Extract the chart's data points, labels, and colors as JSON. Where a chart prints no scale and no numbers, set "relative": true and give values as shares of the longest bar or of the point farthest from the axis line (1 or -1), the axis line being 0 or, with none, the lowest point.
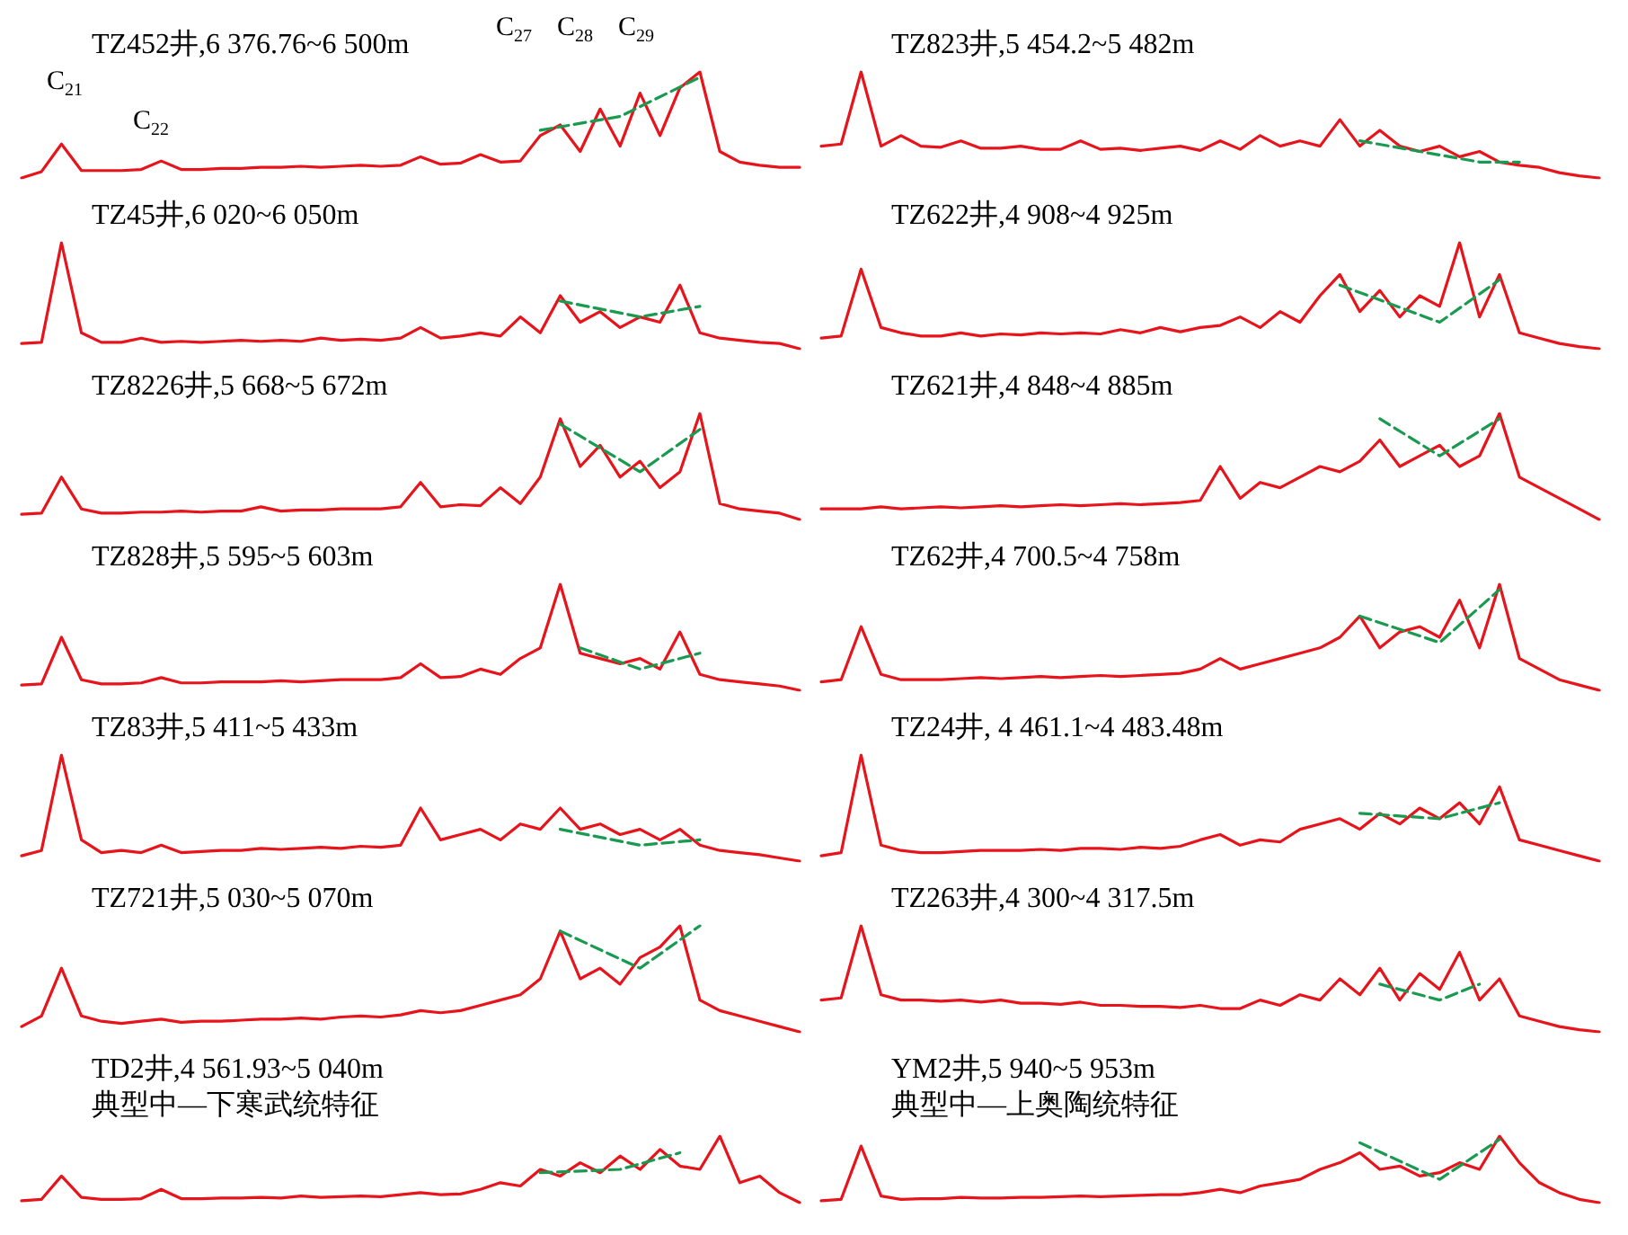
{
  "chart_data": [
    {
      "type": "line",
      "title": "TZ452井,6 376.76~6 500m",
      "relative": true,
      "annotations": [
        "C$_{21}$",
        "C$_{22}$",
        "C$_{27}$",
        "C$_{28}$",
        "C$_{29}$"
      ],
      "categories": [
        null,
        null,
        null,
        null,
        null,
        null,
        null,
        null,
        null,
        null,
        null,
        null,
        null,
        null,
        null,
        null,
        null,
        null,
        null,
        null,
        null,
        null,
        null,
        null,
        null,
        null,
        null,
        null,
        null,
        null,
        null,
        null,
        null,
        null,
        null,
        null,
        null,
        null,
        null,
        null
      ],
      "series": [
        {
          "color": "#e8141c",
          "values": [
            0.0,
            0.06,
            0.32,
            0.07,
            0.07,
            0.07,
            0.08,
            0.16,
            0.08,
            0.08,
            0.09,
            0.09,
            0.1,
            0.1,
            0.11,
            0.1,
            0.11,
            0.12,
            0.11,
            0.12,
            0.2,
            0.13,
            0.14,
            0.22,
            0.15,
            0.16,
            0.4,
            0.5,
            0.25,
            0.65,
            0.3,
            0.8,
            0.4,
            0.85,
            1.0,
            0.25,
            0.15,
            0.12,
            0.1,
            0.1
          ]
        },
        {
          "color": "#1a9a50",
          "line_style": "dashed",
          "values": [
            null,
            null,
            null,
            null,
            null,
            null,
            null,
            null,
            null,
            null,
            null,
            null,
            null,
            null,
            null,
            null,
            null,
            null,
            null,
            null,
            null,
            null,
            null,
            null,
            null,
            null,
            0.45,
            null,
            null,
            null,
            0.58,
            null,
            null,
            null,
            0.95,
            null,
            null,
            null,
            null,
            null
          ]
        }
      ]
    },
    {
      "type": "line",
      "title": "TZ823井,5 454.2~5 482m",
      "relative": true,
      "categories": [
        null,
        null,
        null,
        null,
        null,
        null,
        null,
        null,
        null,
        null,
        null,
        null,
        null,
        null,
        null,
        null,
        null,
        null,
        null,
        null,
        null,
        null,
        null,
        null,
        null,
        null,
        null,
        null,
        null,
        null,
        null,
        null,
        null,
        null,
        null,
        null,
        null,
        null,
        null,
        null
      ],
      "series": [
        {
          "color": "#e8141c",
          "values": [
            0.3,
            0.32,
            1.0,
            0.3,
            0.4,
            0.3,
            0.29,
            0.35,
            0.28,
            0.28,
            0.3,
            0.27,
            0.27,
            0.35,
            0.27,
            0.28,
            0.26,
            0.28,
            0.3,
            0.26,
            0.35,
            0.27,
            0.4,
            0.3,
            0.35,
            0.3,
            0.55,
            0.3,
            0.45,
            0.3,
            0.25,
            0.3,
            0.2,
            0.25,
            0.15,
            0.12,
            0.1,
            0.05,
            0.02,
            0.0
          ]
        },
        {
          "color": "#1a9a50",
          "line_style": "dashed",
          "values": [
            null,
            null,
            null,
            null,
            null,
            null,
            null,
            null,
            null,
            null,
            null,
            null,
            null,
            null,
            null,
            null,
            null,
            null,
            null,
            null,
            null,
            null,
            null,
            null,
            null,
            null,
            null,
            0.35,
            null,
            null,
            null,
            null,
            null,
            0.15,
            null,
            0.15,
            null,
            null,
            null,
            null
          ]
        }
      ]
    },
    {
      "type": "line",
      "title": "TZ45井,6 020~6 050m",
      "relative": true,
      "categories": [
        null,
        null,
        null,
        null,
        null,
        null,
        null,
        null,
        null,
        null,
        null,
        null,
        null,
        null,
        null,
        null,
        null,
        null,
        null,
        null,
        null,
        null,
        null,
        null,
        null,
        null,
        null,
        null,
        null,
        null,
        null,
        null,
        null,
        null,
        null,
        null,
        null,
        null,
        null,
        null
      ],
      "series": [
        {
          "color": "#e8141c",
          "values": [
            0.05,
            0.06,
            1.0,
            0.15,
            0.06,
            0.06,
            0.1,
            0.06,
            0.07,
            0.06,
            0.07,
            0.08,
            0.07,
            0.08,
            0.07,
            0.1,
            0.08,
            0.09,
            0.08,
            0.1,
            0.2,
            0.1,
            0.12,
            0.15,
            0.12,
            0.3,
            0.15,
            0.5,
            0.25,
            0.35,
            0.2,
            0.3,
            0.25,
            0.6,
            0.15,
            0.1,
            0.08,
            0.06,
            0.05,
            0.0
          ]
        },
        {
          "color": "#1a9a50",
          "line_style": "dashed",
          "values": [
            null,
            null,
            null,
            null,
            null,
            null,
            null,
            null,
            null,
            null,
            null,
            null,
            null,
            null,
            null,
            null,
            null,
            null,
            null,
            null,
            null,
            null,
            null,
            null,
            null,
            null,
            null,
            0.45,
            null,
            null,
            null,
            0.3,
            null,
            null,
            0.4,
            null,
            null,
            null,
            null,
            null
          ]
        }
      ]
    },
    {
      "type": "line",
      "title": "TZ622井,4 908~4 925m",
      "relative": true,
      "categories": [
        null,
        null,
        null,
        null,
        null,
        null,
        null,
        null,
        null,
        null,
        null,
        null,
        null,
        null,
        null,
        null,
        null,
        null,
        null,
        null,
        null,
        null,
        null,
        null,
        null,
        null,
        null,
        null,
        null,
        null,
        null,
        null,
        null,
        null,
        null,
        null,
        null,
        null,
        null,
        null
      ],
      "series": [
        {
          "color": "#e8141c",
          "values": [
            0.1,
            0.12,
            0.75,
            0.2,
            0.15,
            0.12,
            0.12,
            0.15,
            0.12,
            0.14,
            0.13,
            0.15,
            0.14,
            0.15,
            0.14,
            0.18,
            0.15,
            0.2,
            0.16,
            0.2,
            0.22,
            0.3,
            0.2,
            0.35,
            0.25,
            0.5,
            0.7,
            0.35,
            0.55,
            0.3,
            0.5,
            0.4,
            1.0,
            0.3,
            0.7,
            0.15,
            0.1,
            0.05,
            0.02,
            0.0
          ]
        },
        {
          "color": "#1a9a50",
          "line_style": "dashed",
          "values": [
            null,
            null,
            null,
            null,
            null,
            null,
            null,
            null,
            null,
            null,
            null,
            null,
            null,
            null,
            null,
            null,
            null,
            null,
            null,
            null,
            null,
            null,
            null,
            null,
            null,
            null,
            0.6,
            null,
            null,
            null,
            null,
            0.25,
            null,
            null,
            0.65,
            null,
            null,
            null,
            null,
            null
          ]
        }
      ]
    },
    {
      "type": "line",
      "title": "TZ8226井,5 668~5 672m",
      "relative": true,
      "categories": [
        null,
        null,
        null,
        null,
        null,
        null,
        null,
        null,
        null,
        null,
        null,
        null,
        null,
        null,
        null,
        null,
        null,
        null,
        null,
        null,
        null,
        null,
        null,
        null,
        null,
        null,
        null,
        null,
        null,
        null,
        null,
        null,
        null,
        null,
        null,
        null,
        null,
        null,
        null,
        null
      ],
      "series": [
        {
          "color": "#e8141c",
          "values": [
            0.05,
            0.06,
            0.4,
            0.1,
            0.06,
            0.06,
            0.07,
            0.07,
            0.08,
            0.07,
            0.08,
            0.08,
            0.12,
            0.08,
            0.09,
            0.09,
            0.1,
            0.1,
            0.1,
            0.12,
            0.35,
            0.12,
            0.14,
            0.13,
            0.3,
            0.15,
            0.4,
            0.95,
            0.5,
            0.7,
            0.4,
            0.55,
            0.3,
            0.45,
            1.0,
            0.15,
            0.1,
            0.08,
            0.06,
            0.0
          ]
        },
        {
          "color": "#1a9a50",
          "line_style": "dashed",
          "values": [
            null,
            null,
            null,
            null,
            null,
            null,
            null,
            null,
            null,
            null,
            null,
            null,
            null,
            null,
            null,
            null,
            null,
            null,
            null,
            null,
            null,
            null,
            null,
            null,
            null,
            null,
            null,
            0.9,
            null,
            null,
            null,
            0.45,
            null,
            null,
            0.85,
            null,
            null,
            null,
            null,
            null
          ]
        }
      ]
    },
    {
      "type": "line",
      "title": "TZ621井,4 848~4 885m",
      "relative": true,
      "categories": [
        null,
        null,
        null,
        null,
        null,
        null,
        null,
        null,
        null,
        null,
        null,
        null,
        null,
        null,
        null,
        null,
        null,
        null,
        null,
        null,
        null,
        null,
        null,
        null,
        null,
        null,
        null,
        null,
        null,
        null,
        null,
        null,
        null,
        null,
        null,
        null,
        null,
        null,
        null,
        null
      ],
      "series": [
        {
          "color": "#e8141c",
          "values": [
            0.1,
            0.1,
            0.1,
            0.12,
            0.1,
            0.11,
            0.12,
            0.11,
            0.12,
            0.13,
            0.12,
            0.13,
            0.14,
            0.13,
            0.14,
            0.15,
            0.14,
            0.15,
            0.16,
            0.18,
            0.5,
            0.2,
            0.35,
            0.3,
            0.4,
            0.5,
            0.45,
            0.55,
            0.75,
            0.5,
            0.6,
            0.7,
            0.5,
            0.6,
            1.0,
            0.4,
            0.3,
            0.2,
            0.1,
            0.0
          ]
        },
        {
          "color": "#1a9a50",
          "line_style": "dashed",
          "values": [
            null,
            null,
            null,
            null,
            null,
            null,
            null,
            null,
            null,
            null,
            null,
            null,
            null,
            null,
            null,
            null,
            null,
            null,
            null,
            null,
            null,
            null,
            null,
            null,
            null,
            null,
            null,
            null,
            0.95,
            null,
            null,
            0.6,
            null,
            null,
            0.95,
            null,
            null,
            null,
            null,
            null
          ]
        }
      ]
    },
    {
      "type": "line",
      "title": "TZ828井,5 595~5 603m",
      "relative": true,
      "categories": [
        null,
        null,
        null,
        null,
        null,
        null,
        null,
        null,
        null,
        null,
        null,
        null,
        null,
        null,
        null,
        null,
        null,
        null,
        null,
        null,
        null,
        null,
        null,
        null,
        null,
        null,
        null,
        null,
        null,
        null,
        null,
        null,
        null,
        null,
        null,
        null,
        null,
        null,
        null,
        null
      ],
      "series": [
        {
          "color": "#e8141c",
          "values": [
            0.05,
            0.06,
            0.5,
            0.1,
            0.06,
            0.06,
            0.07,
            0.12,
            0.07,
            0.07,
            0.08,
            0.08,
            0.08,
            0.09,
            0.08,
            0.09,
            0.1,
            0.1,
            0.1,
            0.12,
            0.25,
            0.12,
            0.13,
            0.2,
            0.15,
            0.3,
            0.4,
            1.0,
            0.35,
            0.3,
            0.25,
            0.3,
            0.2,
            0.55,
            0.15,
            0.1,
            0.08,
            0.06,
            0.04,
            0.0
          ]
        },
        {
          "color": "#1a9a50",
          "line_style": "dashed",
          "values": [
            null,
            null,
            null,
            null,
            null,
            null,
            null,
            null,
            null,
            null,
            null,
            null,
            null,
            null,
            null,
            null,
            null,
            null,
            null,
            null,
            null,
            null,
            null,
            null,
            null,
            null,
            null,
            null,
            0.4,
            null,
            null,
            0.2,
            null,
            null,
            0.35,
            null,
            null,
            null,
            null,
            null
          ]
        }
      ]
    },
    {
      "type": "line",
      "title": "TZ62井,4 700.5~4 758m",
      "relative": true,
      "categories": [
        null,
        null,
        null,
        null,
        null,
        null,
        null,
        null,
        null,
        null,
        null,
        null,
        null,
        null,
        null,
        null,
        null,
        null,
        null,
        null,
        null,
        null,
        null,
        null,
        null,
        null,
        null,
        null,
        null,
        null,
        null,
        null,
        null,
        null,
        null,
        null,
        null,
        null,
        null,
        null
      ],
      "series": [
        {
          "color": "#e8141c",
          "values": [
            0.08,
            0.1,
            0.6,
            0.15,
            0.1,
            0.1,
            0.1,
            0.11,
            0.12,
            0.11,
            0.12,
            0.13,
            0.12,
            0.13,
            0.14,
            0.13,
            0.14,
            0.15,
            0.16,
            0.2,
            0.3,
            0.2,
            0.25,
            0.3,
            0.35,
            0.4,
            0.5,
            0.7,
            0.4,
            0.55,
            0.6,
            0.5,
            0.85,
            0.4,
            1.0,
            0.3,
            0.2,
            0.1,
            0.05,
            0.0
          ]
        },
        {
          "color": "#1a9a50",
          "line_style": "dashed",
          "values": [
            null,
            null,
            null,
            null,
            null,
            null,
            null,
            null,
            null,
            null,
            null,
            null,
            null,
            null,
            null,
            null,
            null,
            null,
            null,
            null,
            null,
            null,
            null,
            null,
            null,
            null,
            null,
            0.7,
            null,
            null,
            null,
            0.45,
            null,
            null,
            0.95,
            null,
            null,
            null,
            null,
            null
          ]
        }
      ]
    },
    {
      "type": "line",
      "title": "TZ83井,5 411~5 433m",
      "relative": true,
      "categories": [
        null,
        null,
        null,
        null,
        null,
        null,
        null,
        null,
        null,
        null,
        null,
        null,
        null,
        null,
        null,
        null,
        null,
        null,
        null,
        null,
        null,
        null,
        null,
        null,
        null,
        null,
        null,
        null,
        null,
        null,
        null,
        null,
        null,
        null,
        null,
        null,
        null,
        null,
        null,
        null
      ],
      "series": [
        {
          "color": "#e8141c",
          "values": [
            0.05,
            0.1,
            1.0,
            0.2,
            0.08,
            0.1,
            0.08,
            0.15,
            0.08,
            0.09,
            0.1,
            0.1,
            0.12,
            0.11,
            0.12,
            0.13,
            0.12,
            0.14,
            0.13,
            0.15,
            0.5,
            0.2,
            0.25,
            0.3,
            0.2,
            0.35,
            0.3,
            0.5,
            0.3,
            0.35,
            0.25,
            0.3,
            0.2,
            0.3,
            0.15,
            0.1,
            0.08,
            0.06,
            0.03,
            0.0
          ]
        },
        {
          "color": "#1a9a50",
          "line_style": "dashed",
          "values": [
            null,
            null,
            null,
            null,
            null,
            null,
            null,
            null,
            null,
            null,
            null,
            null,
            null,
            null,
            null,
            null,
            null,
            null,
            null,
            null,
            null,
            null,
            null,
            null,
            null,
            null,
            null,
            0.3,
            null,
            null,
            null,
            0.15,
            null,
            null,
            0.2,
            null,
            null,
            null,
            null,
            null
          ]
        }
      ]
    },
    {
      "type": "line",
      "title": "TZ24井, 4 461.1~4 483.48m",
      "relative": true,
      "categories": [
        null,
        null,
        null,
        null,
        null,
        null,
        null,
        null,
        null,
        null,
        null,
        null,
        null,
        null,
        null,
        null,
        null,
        null,
        null,
        null,
        null,
        null,
        null,
        null,
        null,
        null,
        null,
        null,
        null,
        null,
        null,
        null,
        null,
        null,
        null,
        null,
        null,
        null,
        null,
        null
      ],
      "series": [
        {
          "color": "#e8141c",
          "values": [
            0.05,
            0.08,
            1.0,
            0.15,
            0.1,
            0.08,
            0.08,
            0.09,
            0.1,
            0.1,
            0.1,
            0.11,
            0.1,
            0.12,
            0.12,
            0.11,
            0.13,
            0.12,
            0.14,
            0.2,
            0.25,
            0.15,
            0.2,
            0.18,
            0.3,
            0.35,
            0.4,
            0.3,
            0.45,
            0.35,
            0.5,
            0.4,
            0.55,
            0.35,
            0.7,
            0.2,
            0.15,
            0.1,
            0.05,
            0.0
          ]
        },
        {
          "color": "#1a9a50",
          "line_style": "dashed",
          "values": [
            null,
            null,
            null,
            null,
            null,
            null,
            null,
            null,
            null,
            null,
            null,
            null,
            null,
            null,
            null,
            null,
            null,
            null,
            null,
            null,
            null,
            null,
            null,
            null,
            null,
            null,
            null,
            0.45,
            null,
            null,
            null,
            0.4,
            null,
            null,
            0.55,
            null,
            null,
            null,
            null,
            null
          ]
        }
      ]
    },
    {
      "type": "line",
      "title": "TZ721井,5 030~5 070m",
      "relative": true,
      "categories": [
        null,
        null,
        null,
        null,
        null,
        null,
        null,
        null,
        null,
        null,
        null,
        null,
        null,
        null,
        null,
        null,
        null,
        null,
        null,
        null,
        null,
        null,
        null,
        null,
        null,
        null,
        null,
        null,
        null,
        null,
        null,
        null,
        null,
        null,
        null,
        null,
        null,
        null,
        null,
        null
      ],
      "series": [
        {
          "color": "#e8141c",
          "values": [
            0.05,
            0.15,
            0.6,
            0.15,
            0.1,
            0.08,
            0.1,
            0.12,
            0.09,
            0.1,
            0.1,
            0.11,
            0.12,
            0.12,
            0.13,
            0.12,
            0.14,
            0.15,
            0.14,
            0.16,
            0.2,
            0.18,
            0.2,
            0.25,
            0.3,
            0.35,
            0.5,
            0.95,
            0.5,
            0.6,
            0.45,
            0.7,
            0.8,
            1.0,
            0.3,
            0.2,
            0.15,
            0.1,
            0.05,
            0.0
          ]
        },
        {
          "color": "#1a9a50",
          "line_style": "dashed",
          "values": [
            null,
            null,
            null,
            null,
            null,
            null,
            null,
            null,
            null,
            null,
            null,
            null,
            null,
            null,
            null,
            null,
            null,
            null,
            null,
            null,
            null,
            null,
            null,
            null,
            null,
            null,
            null,
            0.95,
            null,
            null,
            null,
            0.6,
            null,
            null,
            1.0,
            null,
            null,
            null,
            null,
            null
          ]
        }
      ]
    },
    {
      "type": "line",
      "title": "TZ263井,4 300~4 317.5m",
      "relative": true,
      "categories": [
        null,
        null,
        null,
        null,
        null,
        null,
        null,
        null,
        null,
        null,
        null,
        null,
        null,
        null,
        null,
        null,
        null,
        null,
        null,
        null,
        null,
        null,
        null,
        null,
        null,
        null,
        null,
        null,
        null,
        null,
        null,
        null,
        null,
        null,
        null,
        null,
        null,
        null,
        null,
        null
      ],
      "series": [
        {
          "color": "#e8141c",
          "values": [
            0.3,
            0.32,
            1.0,
            0.35,
            0.3,
            0.3,
            0.29,
            0.3,
            0.28,
            0.3,
            0.27,
            0.27,
            0.26,
            0.28,
            0.25,
            0.25,
            0.24,
            0.24,
            0.23,
            0.25,
            0.22,
            0.22,
            0.3,
            0.25,
            0.35,
            0.3,
            0.5,
            0.35,
            0.6,
            0.3,
            0.55,
            0.4,
            0.75,
            0.3,
            0.5,
            0.15,
            0.1,
            0.05,
            0.02,
            0.0
          ]
        },
        {
          "color": "#1a9a50",
          "line_style": "dashed",
          "values": [
            null,
            null,
            null,
            null,
            null,
            null,
            null,
            null,
            null,
            null,
            null,
            null,
            null,
            null,
            null,
            null,
            null,
            null,
            null,
            null,
            null,
            null,
            null,
            null,
            null,
            null,
            null,
            null,
            0.45,
            null,
            null,
            0.3,
            null,
            0.45,
            null,
            null,
            null,
            null,
            null,
            null
          ]
        }
      ]
    },
    {
      "type": "line",
      "title": "TD2井,4 561.93~5 040m",
      "subtitle": "典型中—下寒武统特征",
      "relative": true,
      "categories": [
        null,
        null,
        null,
        null,
        null,
        null,
        null,
        null,
        null,
        null,
        null,
        null,
        null,
        null,
        null,
        null,
        null,
        null,
        null,
        null,
        null,
        null,
        null,
        null,
        null,
        null,
        null,
        null,
        null,
        null,
        null,
        null,
        null,
        null,
        null,
        null,
        null,
        null,
        null,
        null
      ],
      "series": [
        {
          "color": "#e8141c",
          "values": [
            0.03,
            0.05,
            0.4,
            0.08,
            0.05,
            0.05,
            0.06,
            0.2,
            0.06,
            0.06,
            0.07,
            0.07,
            0.08,
            0.07,
            0.1,
            0.08,
            0.09,
            0.1,
            0.09,
            0.12,
            0.15,
            0.12,
            0.13,
            0.2,
            0.3,
            0.25,
            0.5,
            0.4,
            0.6,
            0.45,
            0.7,
            0.5,
            0.8,
            0.55,
            0.5,
            1.0,
            0.3,
            0.4,
            0.15,
            0.0
          ]
        },
        {
          "color": "#1a9a50",
          "line_style": "dashed",
          "values": [
            null,
            null,
            null,
            null,
            null,
            null,
            null,
            null,
            null,
            null,
            null,
            null,
            null,
            null,
            null,
            null,
            null,
            null,
            null,
            null,
            null,
            null,
            null,
            null,
            null,
            null,
            0.45,
            null,
            null,
            null,
            0.5,
            null,
            null,
            0.75,
            null,
            null,
            null,
            null,
            null,
            null
          ]
        }
      ]
    },
    {
      "type": "line",
      "title": "YM2井,5 940~5 953m",
      "subtitle": "典型中—上奥陶统特征",
      "relative": true,
      "categories": [
        null,
        null,
        null,
        null,
        null,
        null,
        null,
        null,
        null,
        null,
        null,
        null,
        null,
        null,
        null,
        null,
        null,
        null,
        null,
        null,
        null,
        null,
        null,
        null,
        null,
        null,
        null,
        null,
        null,
        null,
        null,
        null,
        null,
        null,
        null,
        null,
        null,
        null,
        null,
        null
      ],
      "series": [
        {
          "color": "#e8141c",
          "values": [
            0.03,
            0.05,
            0.85,
            0.1,
            0.05,
            0.06,
            0.06,
            0.08,
            0.07,
            0.07,
            0.08,
            0.08,
            0.09,
            0.1,
            0.09,
            0.1,
            0.11,
            0.12,
            0.12,
            0.15,
            0.2,
            0.15,
            0.25,
            0.3,
            0.35,
            0.5,
            0.6,
            0.75,
            0.5,
            0.55,
            0.4,
            0.45,
            0.6,
            0.5,
            1.0,
            0.6,
            0.3,
            0.15,
            0.05,
            0.0
          ]
        },
        {
          "color": "#1a9a50",
          "line_style": "dashed",
          "values": [
            null,
            null,
            null,
            null,
            null,
            null,
            null,
            null,
            null,
            null,
            null,
            null,
            null,
            null,
            null,
            null,
            null,
            null,
            null,
            null,
            null,
            null,
            null,
            null,
            null,
            null,
            null,
            0.9,
            null,
            null,
            null,
            0.35,
            null,
            null,
            0.95,
            null,
            null,
            null,
            null,
            null
          ]
        }
      ]
    }
  ]
}
